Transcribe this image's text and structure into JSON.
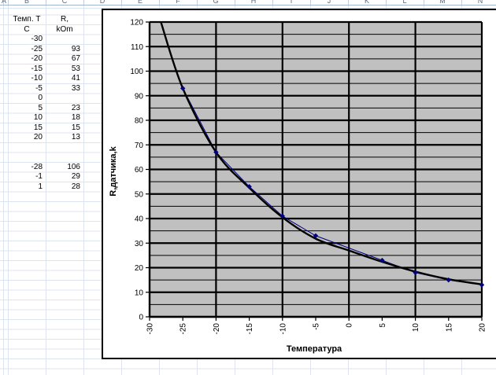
{
  "spreadsheet": {
    "column_headers": [
      "A",
      "B",
      "C",
      "D",
      "E",
      "F",
      "G",
      "H",
      "I",
      "J",
      "K",
      "L",
      "M",
      "N"
    ],
    "rows": [
      {
        "b": "Темп. Т",
        "c": "R,",
        "header": true
      },
      {
        "b": "С",
        "c": "kOm",
        "header": true
      },
      {
        "b": "-30",
        "c": ""
      },
      {
        "b": "-25",
        "c": "93"
      },
      {
        "b": "-20",
        "c": "67"
      },
      {
        "b": "-15",
        "c": "53"
      },
      {
        "b": "-10",
        "c": "41"
      },
      {
        "b": "-5",
        "c": "33"
      },
      {
        "b": "0",
        "c": ""
      },
      {
        "b": "5",
        "c": "23"
      },
      {
        "b": "10",
        "c": "18"
      },
      {
        "b": "15",
        "c": "15"
      },
      {
        "b": "20",
        "c": "13"
      },
      {
        "b": "",
        "c": ""
      },
      {
        "b": "",
        "c": ""
      },
      {
        "b": "-28",
        "c": "106"
      },
      {
        "b": "-1",
        "c": "29"
      },
      {
        "b": "1",
        "c": "28"
      }
    ]
  },
  "chart_data": {
    "type": "scatter",
    "title": "",
    "xlabel": "Температура",
    "ylabel": "R,датчика,k",
    "x": [
      -25,
      -20,
      -15,
      -10,
      -5,
      5,
      10,
      15,
      20
    ],
    "y": [
      93,
      67,
      53,
      41,
      33,
      23,
      18,
      15,
      13
    ],
    "xlim": [
      -30,
      20
    ],
    "ylim": [
      0,
      120
    ],
    "x_tick_step": 5,
    "y_tick_step": 10,
    "y_minor_step": 5,
    "x_gridline_step": 10,
    "legend": "none",
    "plot_bg_color": "#c0c0c0",
    "gridline_color": "#000000",
    "marker_color": "#000080",
    "series_line_color": "#000080",
    "trendline_color": "#000000",
    "trendline_points": [
      [
        -28.3,
        120
      ],
      [
        -25,
        93
      ],
      [
        -20,
        67
      ],
      [
        -15,
        52.5
      ],
      [
        -10,
        40.5
      ],
      [
        -5,
        31.8
      ],
      [
        0,
        27
      ],
      [
        5,
        22.4
      ],
      [
        10,
        18.4
      ],
      [
        15,
        15.3
      ],
      [
        20,
        13.2
      ]
    ]
  }
}
